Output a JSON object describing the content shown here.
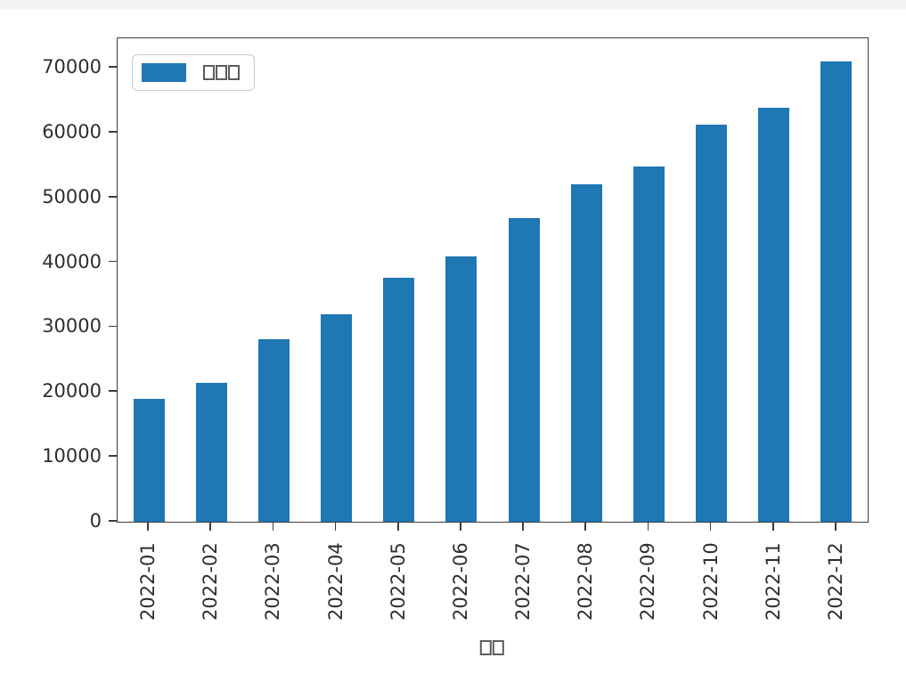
{
  "page": {
    "background_color": "#ffffff",
    "top_strip_color": "#f4f4f4"
  },
  "chart_data": {
    "type": "bar",
    "title": "",
    "xlabel": "□□",
    "ylabel": "",
    "categories": [
      "2022-01",
      "2022-02",
      "2022-03",
      "2022-04",
      "2022-05",
      "2022-06",
      "2022-07",
      "2022-08",
      "2022-09",
      "2022-10",
      "2022-11",
      "2022-12"
    ],
    "values": [
      18900,
      21400,
      28200,
      32000,
      37600,
      40900,
      46800,
      52000,
      54800,
      61200,
      63900,
      71000
    ],
    "ylim": [
      0,
      74550
    ],
    "yticks": [
      0,
      10000,
      20000,
      30000,
      40000,
      50000,
      60000,
      70000
    ],
    "x_tick_rotation": 90,
    "grid": false,
    "bar_color": "#1f77b4",
    "spine_color": "#3c3c3c",
    "legend": {
      "position": "upper left",
      "entries": [
        {
          "label": "□□□",
          "swatch_color": "#1f77b4"
        }
      ]
    }
  }
}
